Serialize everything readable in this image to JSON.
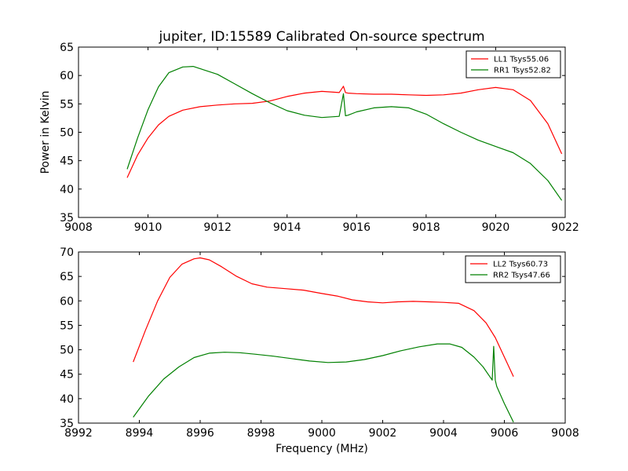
{
  "chart_data": [
    {
      "type": "line",
      "title": "jupiter, ID:15589 Calibrated On-source spectrum",
      "xlabel": "",
      "ylabel": "Power in Kelvin",
      "xlim": [
        9008,
        9022
      ],
      "ylim": [
        35,
        65
      ],
      "xticks": [
        9008,
        9010,
        9012,
        9014,
        9016,
        9018,
        9020,
        9022
      ],
      "yticks": [
        35,
        40,
        45,
        50,
        55,
        60,
        65
      ],
      "grid": false,
      "legend_position": "top-right",
      "series": [
        {
          "name": "LL1 Tsys55.06",
          "color": "#ff0000",
          "x": [
            9009.4,
            9009.7,
            9010.0,
            9010.3,
            9010.6,
            9011.0,
            9011.5,
            9012.0,
            9012.5,
            9013.0,
            9013.5,
            9014.0,
            9014.5,
            9015.0,
            9015.5,
            9015.62,
            9015.68,
            9015.75,
            9016.0,
            9016.5,
            9017.0,
            9017.5,
            9018.0,
            9018.5,
            9019.0,
            9019.5,
            9020.0,
            9020.5,
            9021.0,
            9021.5,
            9021.9
          ],
          "y": [
            42.0,
            46.0,
            49.0,
            51.3,
            52.8,
            53.9,
            54.5,
            54.8,
            55.0,
            55.1,
            55.5,
            56.3,
            56.9,
            57.2,
            57.0,
            58.1,
            57.0,
            56.9,
            56.8,
            56.7,
            56.7,
            56.6,
            56.5,
            56.6,
            56.9,
            57.5,
            57.9,
            57.5,
            55.6,
            51.5,
            46.2
          ]
        },
        {
          "name": "RR1 Tsys52.82",
          "color": "#008000",
          "x": [
            9009.4,
            9009.7,
            9010.0,
            9010.3,
            9010.6,
            9011.0,
            9011.3,
            9011.6,
            9012.0,
            9012.5,
            9013.0,
            9013.5,
            9014.0,
            9014.5,
            9015.0,
            9015.5,
            9015.62,
            9015.68,
            9015.75,
            9016.0,
            9016.5,
            9017.0,
            9017.5,
            9018.0,
            9018.5,
            9019.0,
            9019.5,
            9020.0,
            9020.5,
            9021.0,
            9021.5,
            9021.9
          ],
          "y": [
            43.5,
            49.0,
            54.0,
            58.0,
            60.5,
            61.5,
            61.6,
            61.0,
            60.2,
            58.5,
            56.8,
            55.2,
            53.8,
            53.0,
            52.6,
            52.8,
            56.8,
            52.9,
            53.0,
            53.6,
            54.3,
            54.5,
            54.3,
            53.2,
            51.5,
            50.0,
            48.6,
            47.5,
            46.4,
            44.5,
            41.5,
            38.0
          ]
        }
      ]
    },
    {
      "type": "line",
      "title": "",
      "xlabel": "Frequency (MHz)",
      "ylabel": "",
      "xlim": [
        8992,
        9008
      ],
      "ylim": [
        35,
        70
      ],
      "xticks": [
        8992,
        8994,
        8996,
        8998,
        9000,
        9002,
        9004,
        9006,
        9008
      ],
      "yticks": [
        35,
        40,
        45,
        50,
        55,
        60,
        65,
        70
      ],
      "grid": false,
      "legend_position": "top-right",
      "series": [
        {
          "name": "LL2 Tsys60.73",
          "color": "#ff0000",
          "x": [
            8993.8,
            8994.2,
            8994.6,
            8995.0,
            8995.4,
            8995.8,
            8996.0,
            8996.3,
            8996.7,
            8997.2,
            8997.7,
            8998.2,
            8998.8,
            8999.4,
            9000.0,
            9000.5,
            9001.0,
            9001.5,
            9002.0,
            9002.5,
            9003.0,
            9003.5,
            9004.0,
            9004.5,
            9005.0,
            9005.4,
            9005.7,
            9006.0,
            9006.3
          ],
          "y": [
            47.5,
            54.0,
            60.0,
            64.8,
            67.5,
            68.6,
            68.8,
            68.4,
            67.0,
            65.0,
            63.5,
            62.8,
            62.5,
            62.2,
            61.5,
            61.0,
            60.2,
            59.8,
            59.6,
            59.8,
            59.9,
            59.8,
            59.7,
            59.5,
            58.0,
            55.5,
            52.5,
            48.5,
            44.5
          ]
        },
        {
          "name": "RR2 Tsys47.66",
          "color": "#008000",
          "x": [
            8993.8,
            8994.3,
            8994.8,
            8995.3,
            8995.8,
            8996.3,
            8996.8,
            8997.3,
            8997.8,
            8998.4,
            8999.0,
            8999.6,
            9000.2,
            9000.8,
            9001.4,
            9002.0,
            9002.6,
            9003.2,
            9003.8,
            9004.2,
            9004.6,
            9005.0,
            9005.3,
            9005.6,
            9005.65,
            9005.7,
            9005.75,
            9006.0,
            9006.3
          ],
          "y": [
            36.2,
            40.5,
            44.0,
            46.5,
            48.4,
            49.3,
            49.5,
            49.4,
            49.1,
            48.7,
            48.2,
            47.7,
            47.4,
            47.5,
            48.0,
            48.8,
            49.8,
            50.6,
            51.2,
            51.2,
            50.5,
            48.5,
            46.5,
            43.8,
            50.7,
            43.8,
            42.5,
            39.0,
            35.2
          ]
        }
      ]
    }
  ]
}
